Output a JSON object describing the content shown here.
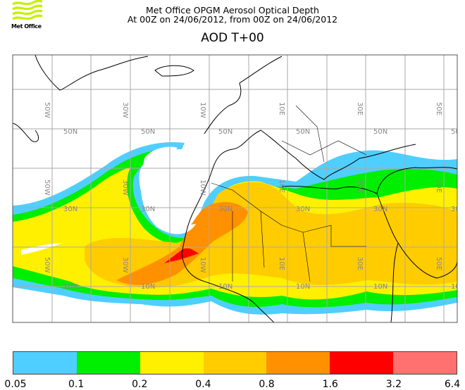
{
  "header": {
    "logo_text": "Met Office",
    "title_line1": "Met Office OPGM Aerosol Optical Depth",
    "title_line2": "At 00Z on 24/06/2012, from 00Z on 24/06/2012",
    "plot_title": "AOD T+00"
  },
  "map": {
    "projection": "lat-lon",
    "lat_labels": [
      "50N",
      "30N",
      "10N"
    ],
    "lon_labels": [
      "50W",
      "30W",
      "10W",
      "10E",
      "30E",
      "50E"
    ],
    "land_outline_color": "#000000",
    "grid_color": "#aaaaaa"
  },
  "colorbar": {
    "levels": [
      "0.05",
      "0.1",
      "0.2",
      "0.4",
      "0.8",
      "1.6",
      "3.2",
      "6.4"
    ],
    "colors": [
      "#4fcfff",
      "#00ee00",
      "#fff000",
      "#ffcc00",
      "#ff9000",
      "#ff0000",
      "#ff7070"
    ]
  }
}
